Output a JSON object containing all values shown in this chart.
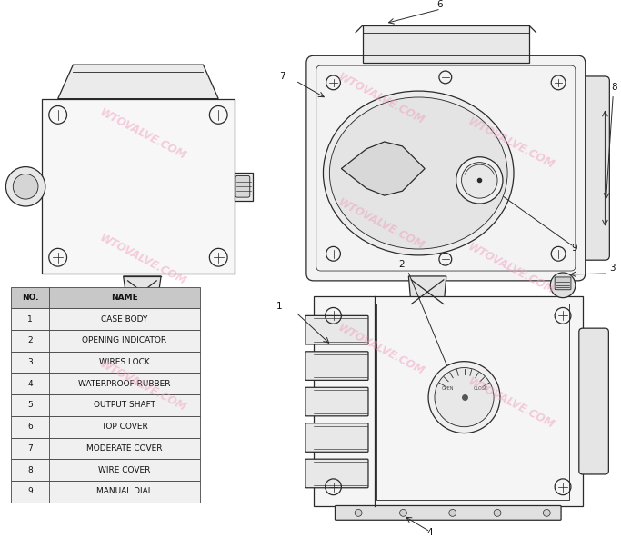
{
  "bg_color": "#ffffff",
  "line_color": "#2a2a2a",
  "table_header_bg": "#c8c8c8",
  "table_row_bg": "#f0f0f0",
  "table_border": "#444444",
  "watermark_color": "#f0a0c0",
  "table_data": [
    [
      "NO.",
      "NAME"
    ],
    [
      "1",
      "CASE BODY"
    ],
    [
      "2",
      "OPENING INDICATOR"
    ],
    [
      "3",
      "WIRES LOCK"
    ],
    [
      "4",
      "WATERPROOF RUBBER"
    ],
    [
      "5",
      "OUTPUT SHAFT"
    ],
    [
      "6",
      "TOP COVER"
    ],
    [
      "7",
      "MODERATE COVER"
    ],
    [
      "8",
      "WIRE COVER"
    ],
    [
      "9",
      "MANUAL DIAL"
    ]
  ],
  "label_fontsize": 7.5,
  "table_fontsize": 6.5
}
